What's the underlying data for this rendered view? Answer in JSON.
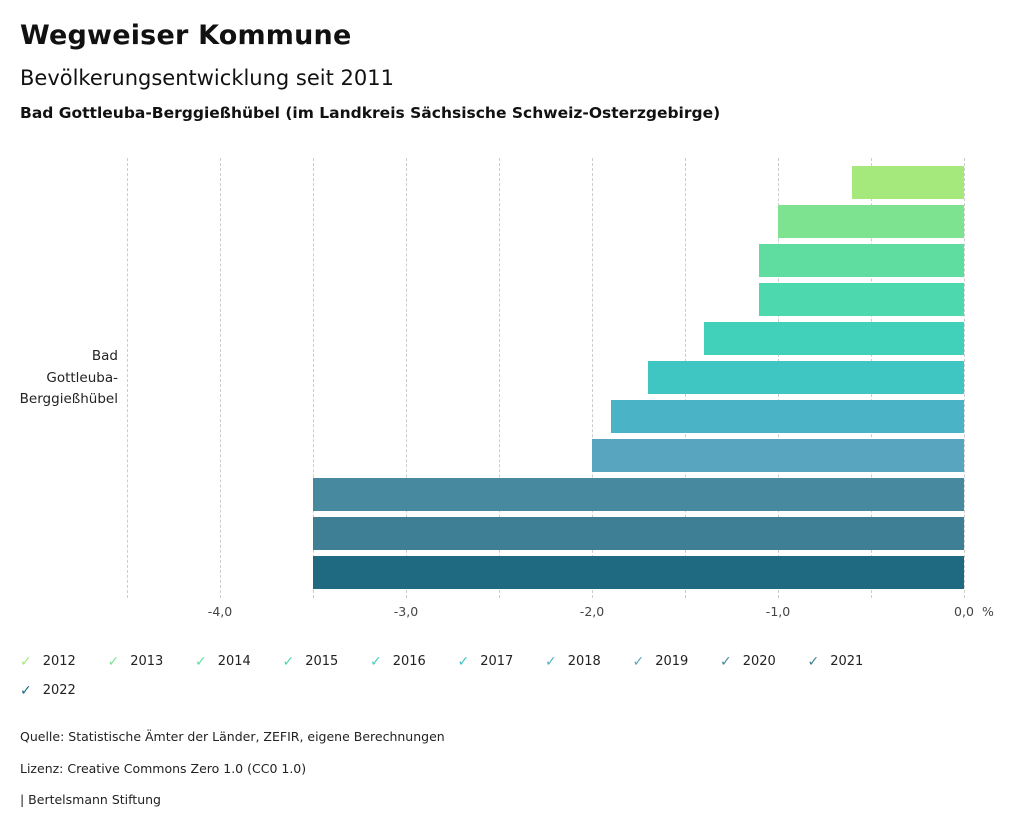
{
  "header": {
    "title": "Wegweiser Kommune"
  },
  "chart_data": {
    "type": "bar",
    "orientation": "horizontal",
    "title": "Bevölkerungsentwicklung seit 2011",
    "subtitle": "Bad Gottleuba-Berggießhübel (im Landkreis Sächsische Schweiz-Osterzgebirge)",
    "category": "Bad Gottleuba-Berggießhübel",
    "category_label_lines": [
      "Bad",
      "Gottleuba-",
      "Berggießhübel"
    ],
    "unit": "%",
    "xlim": [
      -4.5,
      0
    ],
    "grid_step": 0.5,
    "grid": "dashed-vertical",
    "legend_position": "bottom",
    "x_ticks": [
      -4,
      -3,
      -2,
      -1,
      0
    ],
    "x_tick_labels": [
      "-4,0",
      "-3,0",
      "-2,0",
      "-1,0",
      "0,0"
    ],
    "series": [
      {
        "year": "2012",
        "value": -0.6,
        "color": "#a5e97d"
      },
      {
        "year": "2013",
        "value": -1.0,
        "color": "#7ee391"
      },
      {
        "year": "2014",
        "value": -1.1,
        "color": "#5fdda0"
      },
      {
        "year": "2015",
        "value": -1.1,
        "color": "#4ed8ad"
      },
      {
        "year": "2016",
        "value": -1.4,
        "color": "#41d1ba"
      },
      {
        "year": "2017",
        "value": -1.7,
        "color": "#3fc6c3"
      },
      {
        "year": "2018",
        "value": -1.9,
        "color": "#4ab3c6"
      },
      {
        "year": "2019",
        "value": -2.0,
        "color": "#58a5c0"
      },
      {
        "year": "2020",
        "value": -3.5,
        "color": "#47899f"
      },
      {
        "year": "2021",
        "value": -3.5,
        "color": "#3f7f95"
      },
      {
        "year": "2022",
        "value": -3.5,
        "color": "#1f6a80"
      }
    ]
  },
  "footer": {
    "source": "Quelle: Statistische Ämter der Länder, ZEFIR, eigene Berechnungen",
    "license": "Lizenz: Creative Commons Zero 1.0 (CC0 1.0)",
    "attribution": "| Bertelsmann Stiftung"
  }
}
